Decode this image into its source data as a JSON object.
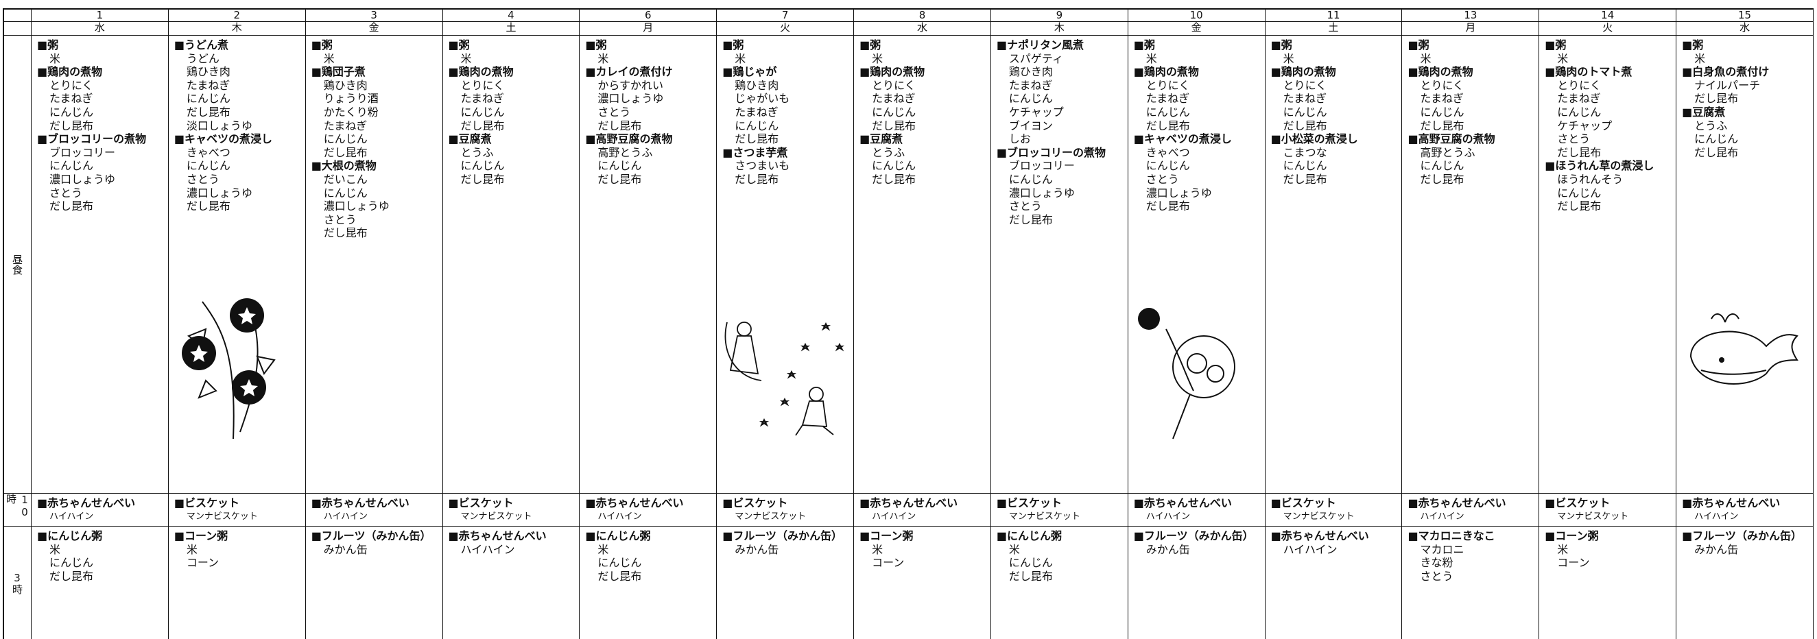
{
  "row_labels": {
    "lunch": "昼食",
    "snack10": "10時",
    "snack3": "3時"
  },
  "days": [
    {
      "date": "1",
      "weekday": "水",
      "lunch": [
        "■粥",
        "米",
        "■鶏肉の煮物",
        "とりにく",
        "たまねぎ",
        "にんじん",
        "だし昆布",
        "■ブロッコリーの煮物",
        "ブロッコリー",
        "にんじん",
        "濃口しょうゆ",
        "さとう",
        "だし昆布"
      ],
      "snack10": [
        "■赤ちゃんせんべい",
        "ハイハイン"
      ],
      "snack3": [
        "■にんじん粥",
        "米",
        "にんじん",
        "だし昆布"
      ]
    },
    {
      "date": "2",
      "weekday": "木",
      "lunch": [
        "■うどん煮",
        "うどん",
        "鶏ひき肉",
        "たまねぎ",
        "にんじん",
        "だし昆布",
        "淡口しょうゆ",
        "■キャベツの煮浸し",
        "きゃべつ",
        "にんじん",
        "さとう",
        "濃口しょうゆ",
        "だし昆布"
      ],
      "snack10": [
        "■ビスケット",
        "マンナビスケット"
      ],
      "snack3": [
        "■コーン粥",
        "米",
        "コーン"
      ]
    },
    {
      "date": "3",
      "weekday": "金",
      "lunch": [
        "■粥",
        "米",
        "■鶏団子煮",
        "鶏ひき肉",
        "りょうり酒",
        "かたくり粉",
        "たまねぎ",
        "にんじん",
        "だし昆布",
        "■大根の煮物",
        "だいこん",
        "にんじん",
        "濃口しょうゆ",
        "さとう",
        "だし昆布"
      ],
      "snack10": [
        "■赤ちゃんせんべい",
        "ハイハイン"
      ],
      "snack3": [
        "■フルーツ（みかん缶）",
        "みかん缶"
      ]
    },
    {
      "date": "4",
      "weekday": "土",
      "lunch": [
        "■粥",
        "米",
        "■鶏肉の煮物",
        "とりにく",
        "たまねぎ",
        "にんじん",
        "だし昆布",
        "■豆腐煮",
        "とうふ",
        "にんじん",
        "だし昆布"
      ],
      "snack10": [
        "■ビスケット",
        "マンナビスケット"
      ],
      "snack3": [
        "■赤ちゃんせんべい",
        "ハイハイン"
      ]
    },
    {
      "date": "6",
      "weekday": "月",
      "lunch": [
        "■粥",
        "米",
        "■カレイの煮付け",
        "からすかれい",
        "濃口しょうゆ",
        "さとう",
        "だし昆布",
        "■高野豆腐の煮物",
        "高野とうふ",
        "にんじん",
        "だし昆布"
      ],
      "snack10": [
        "■赤ちゃんせんべい",
        "ハイハイン"
      ],
      "snack3": [
        "■にんじん粥",
        "米",
        "にんじん",
        "だし昆布"
      ]
    },
    {
      "date": "7",
      "weekday": "火",
      "lunch": [
        "■粥",
        "米",
        "■鶏じゃが",
        "鶏ひき肉",
        "じゃがいも",
        "たまねぎ",
        "にんじん",
        "だし昆布",
        "■さつま芋煮",
        "さつまいも",
        "だし昆布"
      ],
      "snack10": [
        "■ビスケット",
        "マンナビスケット"
      ],
      "snack3": [
        "■フルーツ（みかん缶）",
        "みかん缶"
      ]
    },
    {
      "date": "8",
      "weekday": "水",
      "lunch": [
        "■粥",
        "米",
        "■鶏肉の煮物",
        "とりにく",
        "たまねぎ",
        "にんじん",
        "だし昆布",
        "■豆腐煮",
        "とうふ",
        "にんじん",
        "だし昆布"
      ],
      "snack10": [
        "■赤ちゃんせんべい",
        "ハイハイン"
      ],
      "snack3": [
        "■コーン粥",
        "米",
        "コーン"
      ]
    },
    {
      "date": "9",
      "weekday": "木",
      "lunch": [
        "■ナポリタン風煮",
        "スパゲティ",
        "鶏ひき肉",
        "たまねぎ",
        "にんじん",
        "ケチャップ",
        "ブイヨン",
        "しお",
        "■ブロッコリーの煮物",
        "ブロッコリー",
        "にんじん",
        "濃口しょうゆ",
        "さとう",
        "だし昆布"
      ],
      "snack10": [
        "■ビスケット",
        "マンナビスケット"
      ],
      "snack3": [
        "■にんじん粥",
        "米",
        "にんじん",
        "だし昆布"
      ]
    },
    {
      "date": "10",
      "weekday": "金",
      "lunch": [
        "■粥",
        "米",
        "■鶏肉の煮物",
        "とりにく",
        "たまねぎ",
        "にんじん",
        "だし昆布",
        "■キャベツの煮浸し",
        "きゃべつ",
        "にんじん",
        "さとう",
        "濃口しょうゆ",
        "だし昆布"
      ],
      "snack10": [
        "■赤ちゃんせんべい",
        "ハイハイン"
      ],
      "snack3": [
        "■フルーツ（みかん缶）",
        "みかん缶"
      ]
    },
    {
      "date": "11",
      "weekday": "土",
      "lunch": [
        "■粥",
        "米",
        "■鶏肉の煮物",
        "とりにく",
        "たまねぎ",
        "にんじん",
        "だし昆布",
        "■小松菜の煮浸し",
        "こまつな",
        "にんじん",
        "だし昆布"
      ],
      "snack10": [
        "■ビスケット",
        "マンナビスケット"
      ],
      "snack3": [
        "■赤ちゃんせんべい",
        "ハイハイン"
      ]
    },
    {
      "date": "13",
      "weekday": "月",
      "lunch": [
        "■粥",
        "米",
        "■鶏肉の煮物",
        "とりにく",
        "たまねぎ",
        "にんじん",
        "だし昆布",
        "■高野豆腐の煮物",
        "高野とうふ",
        "にんじん",
        "だし昆布"
      ],
      "snack10": [
        "■赤ちゃんせんべい",
        "ハイハイン"
      ],
      "snack3": [
        "■マカロニきなこ",
        "マカロニ",
        "きな粉",
        "さとう"
      ]
    },
    {
      "date": "14",
      "weekday": "火",
      "lunch": [
        "■粥",
        "米",
        "■鶏肉のトマト煮",
        "とりにく",
        "たまねぎ",
        "にんじん",
        "ケチャップ",
        "さとう",
        "だし昆布",
        "■ほうれん草の煮浸し",
        "ほうれんそう",
        "にんじん",
        "だし昆布"
      ],
      "snack10": [
        "■ビスケット",
        "マンナビスケット"
      ],
      "snack3": [
        "■コーン粥",
        "米",
        "コーン"
      ]
    },
    {
      "date": "15",
      "weekday": "水",
      "lunch": [
        "■粥",
        "米",
        "■白身魚の煮付け",
        "ナイルパーチ",
        "だし昆布",
        "■豆腐煮",
        "とうふ",
        "にんじん",
        "だし昆布"
      ],
      "snack10": [
        "■赤ちゃんせんべい",
        "ハイハイン"
      ],
      "snack3": [
        "■フルーツ（みかん缶）",
        "みかん缶"
      ]
    }
  ]
}
